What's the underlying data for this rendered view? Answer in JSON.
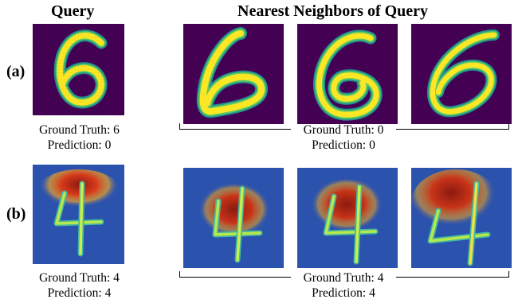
{
  "headers": {
    "query": "Query",
    "neighbors": "Nearest Neighbors of Query"
  },
  "rows": [
    {
      "label": "(a)",
      "query": {
        "ground_truth": "Ground Truth: 6",
        "prediction": "Prediction: 0"
      },
      "neighbors": {
        "ground_truth": "Ground Truth: 0",
        "prediction": "Prediction: 0"
      },
      "style": "binary digit (viridis)"
    },
    {
      "label": "(b)",
      "query": {
        "ground_truth": "Ground Truth: 4",
        "prediction": "Prediction: 4"
      },
      "neighbors": {
        "ground_truth": "Ground Truth: 4",
        "prediction": "Prediction: 4"
      },
      "style": "saliency heatmap (jet)"
    }
  ],
  "colors": {
    "viridis_bg": "#440154",
    "viridis_fg": "#fde725",
    "jet_bg": "#2a4fb8"
  }
}
